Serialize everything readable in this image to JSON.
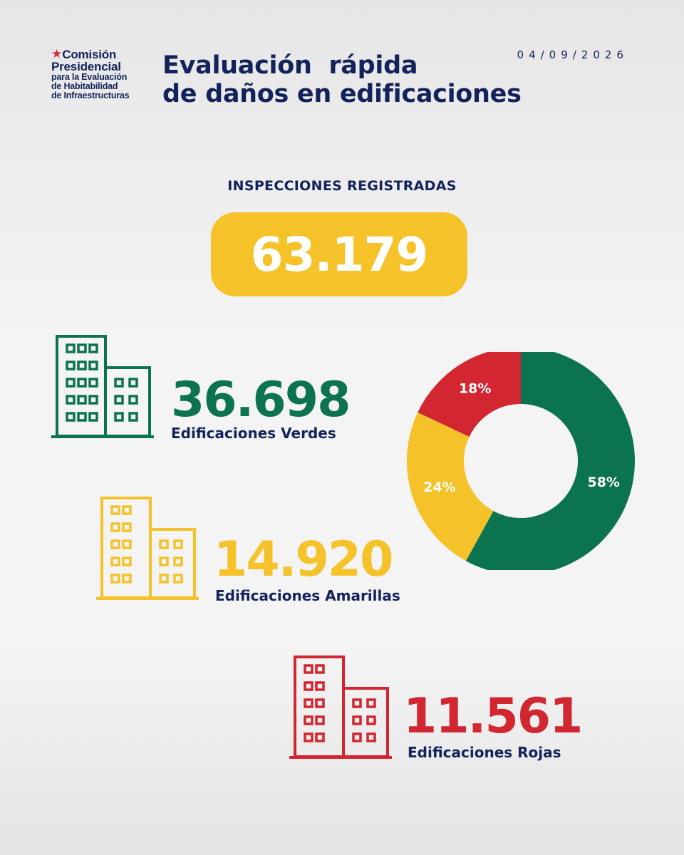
{
  "logo": {
    "line1": "Comisión",
    "line2": "Presidencial",
    "line3": "para la Evaluación",
    "line4": "de Habitabilidad",
    "line5": "de Infraestructuras"
  },
  "header": {
    "title_line1": "Evaluación  rápida",
    "title_line2": "de daños en edificaciones",
    "date": "04/09/2026"
  },
  "inspections": {
    "label": "INSPECCIONES REGISTRADAS",
    "total": "63.179"
  },
  "colors": {
    "green": "#0b7350",
    "yellow": "#f5c22a",
    "red": "#d22630",
    "navy": "#13225a"
  },
  "categories": {
    "green": {
      "value": "36.698",
      "label": "Edificaciones Verdes",
      "icon": "building-icon"
    },
    "yellow": {
      "value": "14.920",
      "label": "Edificaciones Amarillas",
      "icon": "building-icon"
    },
    "red": {
      "value": "11.561",
      "label": "Edificaciones Rojas",
      "icon": "building-icon"
    }
  },
  "chart_data": {
    "type": "pie",
    "title": "",
    "slices": [
      {
        "value": 58,
        "label": "58%",
        "color": "#0b7350"
      },
      {
        "value": 24,
        "label": "24%",
        "color": "#f5c22a"
      },
      {
        "value": 18,
        "label": "18%",
        "color": "#d22630"
      }
    ],
    "hole": 0.5,
    "start": "top",
    "direction": "clockwise"
  }
}
